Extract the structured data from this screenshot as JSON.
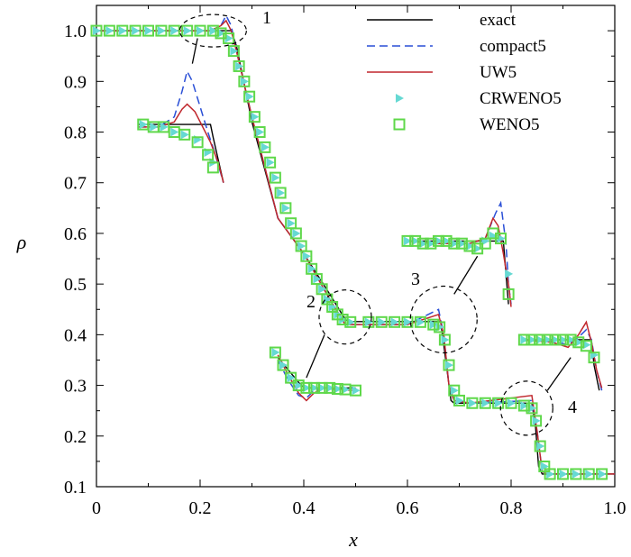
{
  "chart_data": {
    "type": "line",
    "xlabel": "x",
    "ylabel": "ρ",
    "xlim": [
      0,
      1.0
    ],
    "ylim": [
      0.1,
      1.05
    ],
    "xticks": [
      "0",
      "0.2",
      "0.4",
      "0.6",
      "0.8",
      "1.0"
    ],
    "yticks": [
      "0.1",
      "0.2",
      "0.3",
      "0.4",
      "0.5",
      "0.6",
      "0.7",
      "0.8",
      "0.9",
      "1.0"
    ],
    "legend_position": "top-right",
    "colors": {
      "exact": "#000000",
      "compact5": "#2a4fd6",
      "UW5": "#c0272d",
      "CRWENO5": "#66d9d3",
      "WENO5": "#5fd84a"
    },
    "annotations": [
      "1",
      "2",
      "3",
      "4"
    ],
    "series": [
      {
        "name": "exact",
        "style": "solid",
        "x": [
          0.0,
          0.26,
          0.27,
          0.3,
          0.35,
          0.4,
          0.45,
          0.48,
          0.49,
          0.6,
          0.664,
          0.67,
          0.684,
          0.69,
          0.84,
          0.847,
          0.853,
          0.86,
          1.0
        ],
        "y": [
          1.0,
          1.0,
          0.97,
          0.82,
          0.63,
          0.56,
          0.48,
          0.43,
          0.426,
          0.426,
          0.426,
          0.38,
          0.27,
          0.265,
          0.265,
          0.22,
          0.14,
          0.125,
          0.125
        ]
      },
      {
        "name": "compact5",
        "style": "dashed",
        "x": [
          0.0,
          0.22,
          0.24,
          0.25,
          0.26,
          0.27,
          0.3,
          0.35,
          0.4,
          0.45,
          0.48,
          0.5,
          0.6,
          0.66,
          0.67,
          0.68,
          0.69,
          0.72,
          0.84,
          0.85,
          0.86,
          0.87,
          1.0
        ],
        "y": [
          1.0,
          1.0,
          1.01,
          1.03,
          1.01,
          0.96,
          0.83,
          0.63,
          0.56,
          0.47,
          0.42,
          0.42,
          0.42,
          0.45,
          0.4,
          0.3,
          0.27,
          0.265,
          0.27,
          0.21,
          0.13,
          0.125,
          0.125
        ]
      },
      {
        "name": "UW5",
        "style": "solid",
        "x": [
          0.0,
          0.22,
          0.24,
          0.25,
          0.26,
          0.27,
          0.3,
          0.35,
          0.4,
          0.45,
          0.48,
          0.5,
          0.6,
          0.66,
          0.67,
          0.68,
          0.69,
          0.72,
          0.84,
          0.85,
          0.86,
          0.87,
          1.0
        ],
        "y": [
          1.0,
          1.0,
          1.01,
          1.02,
          1.0,
          0.96,
          0.83,
          0.63,
          0.56,
          0.47,
          0.42,
          0.42,
          0.42,
          0.44,
          0.4,
          0.3,
          0.27,
          0.265,
          0.28,
          0.21,
          0.13,
          0.125,
          0.125
        ]
      },
      {
        "name": "CRWENO5",
        "style": "triangle",
        "x": [
          0.0,
          0.025,
          0.05,
          0.075,
          0.1,
          0.125,
          0.15,
          0.175,
          0.2,
          0.225,
          0.24,
          0.255,
          0.265,
          0.275,
          0.285,
          0.295,
          0.305,
          0.315,
          0.325,
          0.335,
          0.345,
          0.355,
          0.365,
          0.375,
          0.385,
          0.395,
          0.405,
          0.415,
          0.425,
          0.435,
          0.445,
          0.455,
          0.465,
          0.475,
          0.49,
          0.525,
          0.55,
          0.575,
          0.6,
          0.625,
          0.65,
          0.662,
          0.672,
          0.68,
          0.69,
          0.7,
          0.725,
          0.75,
          0.775,
          0.8,
          0.825,
          0.84,
          0.848,
          0.856,
          0.864,
          0.875,
          0.9,
          0.925,
          0.95,
          0.975
        ],
        "y": [
          1.0,
          1.0,
          1.0,
          1.0,
          1.0,
          1.0,
          1.0,
          1.0,
          1.0,
          1.0,
          0.995,
          0.985,
          0.96,
          0.93,
          0.9,
          0.87,
          0.83,
          0.8,
          0.77,
          0.74,
          0.71,
          0.68,
          0.65,
          0.62,
          0.6,
          0.575,
          0.555,
          0.53,
          0.51,
          0.49,
          0.47,
          0.455,
          0.44,
          0.43,
          0.425,
          0.425,
          0.425,
          0.425,
          0.425,
          0.425,
          0.42,
          0.415,
          0.39,
          0.34,
          0.29,
          0.27,
          0.265,
          0.265,
          0.265,
          0.265,
          0.26,
          0.255,
          0.23,
          0.18,
          0.14,
          0.125,
          0.125,
          0.125,
          0.125,
          0.125
        ]
      },
      {
        "name": "WENO5",
        "style": "square",
        "x": [
          0.0,
          0.025,
          0.05,
          0.075,
          0.1,
          0.125,
          0.15,
          0.175,
          0.2,
          0.225,
          0.24,
          0.255,
          0.265,
          0.275,
          0.285,
          0.295,
          0.305,
          0.315,
          0.325,
          0.335,
          0.345,
          0.355,
          0.365,
          0.375,
          0.385,
          0.395,
          0.405,
          0.415,
          0.425,
          0.435,
          0.445,
          0.455,
          0.465,
          0.475,
          0.49,
          0.525,
          0.55,
          0.575,
          0.6,
          0.625,
          0.65,
          0.662,
          0.672,
          0.68,
          0.69,
          0.7,
          0.725,
          0.75,
          0.775,
          0.8,
          0.825,
          0.84,
          0.848,
          0.856,
          0.864,
          0.875,
          0.9,
          0.925,
          0.95,
          0.975
        ],
        "y": [
          1.0,
          1.0,
          1.0,
          1.0,
          1.0,
          1.0,
          1.0,
          1.0,
          1.0,
          1.0,
          0.995,
          0.985,
          0.96,
          0.93,
          0.9,
          0.87,
          0.83,
          0.8,
          0.77,
          0.74,
          0.71,
          0.68,
          0.65,
          0.62,
          0.6,
          0.575,
          0.555,
          0.53,
          0.51,
          0.49,
          0.47,
          0.455,
          0.44,
          0.43,
          0.425,
          0.425,
          0.425,
          0.425,
          0.425,
          0.425,
          0.42,
          0.415,
          0.39,
          0.34,
          0.29,
          0.27,
          0.265,
          0.265,
          0.265,
          0.265,
          0.26,
          0.255,
          0.23,
          0.18,
          0.14,
          0.125,
          0.125,
          0.125,
          0.125,
          0.125
        ]
      }
    ],
    "insets": [
      {
        "label": "1",
        "exact": {
          "x": [
            0.08,
            0.22,
            0.225,
            0.245
          ],
          "y": [
            0.815,
            0.815,
            0.79,
            0.7
          ]
        },
        "compact5": {
          "x": [
            0.08,
            0.12,
            0.15,
            0.165,
            0.175,
            0.185,
            0.2,
            0.215,
            0.228,
            0.245
          ],
          "y": [
            0.81,
            0.81,
            0.83,
            0.88,
            0.92,
            0.9,
            0.85,
            0.8,
            0.76,
            0.7
          ]
        },
        "UW5": {
          "x": [
            0.08,
            0.12,
            0.15,
            0.165,
            0.175,
            0.19,
            0.205,
            0.22,
            0.235,
            0.245
          ],
          "y": [
            0.81,
            0.81,
            0.82,
            0.845,
            0.855,
            0.84,
            0.81,
            0.78,
            0.74,
            0.7
          ]
        },
        "CRWENO5": {
          "x": [
            0.09,
            0.11,
            0.13,
            0.15,
            0.17,
            0.195,
            0.215,
            0.225
          ],
          "y": [
            0.815,
            0.81,
            0.81,
            0.8,
            0.795,
            0.785,
            0.76,
            0.74
          ]
        },
        "WENO5": {
          "x": [
            0.09,
            0.11,
            0.13,
            0.15,
            0.17,
            0.195,
            0.215,
            0.225
          ],
          "y": [
            0.815,
            0.81,
            0.81,
            0.8,
            0.795,
            0.78,
            0.755,
            0.73
          ]
        }
      },
      {
        "label": "2",
        "exact": {
          "x": [
            0.35,
            0.395,
            0.405,
            0.5
          ],
          "y": [
            0.355,
            0.3,
            0.295,
            0.295
          ]
        },
        "compact5": {
          "x": [
            0.35,
            0.37,
            0.39,
            0.405,
            0.42,
            0.44,
            0.46,
            0.5
          ],
          "y": [
            0.35,
            0.31,
            0.28,
            0.275,
            0.29,
            0.295,
            0.292,
            0.29
          ]
        },
        "UW5": {
          "x": [
            0.35,
            0.37,
            0.39,
            0.405,
            0.42,
            0.44,
            0.46,
            0.5
          ],
          "y": [
            0.36,
            0.32,
            0.285,
            0.27,
            0.285,
            0.295,
            0.293,
            0.29
          ]
        },
        "CRWENO5": {
          "x": [
            0.345,
            0.36,
            0.375,
            0.39,
            0.405,
            0.42,
            0.435,
            0.45,
            0.465,
            0.48,
            0.5
          ],
          "y": [
            0.365,
            0.34,
            0.315,
            0.3,
            0.295,
            0.295,
            0.295,
            0.295,
            0.293,
            0.292,
            0.29
          ]
        },
        "WENO5": {
          "x": [
            0.345,
            0.36,
            0.375,
            0.39,
            0.405,
            0.42,
            0.435,
            0.45,
            0.465,
            0.48,
            0.5
          ],
          "y": [
            0.365,
            0.34,
            0.315,
            0.3,
            0.295,
            0.295,
            0.295,
            0.295,
            0.293,
            0.292,
            0.29
          ]
        }
      },
      {
        "label": "3",
        "exact": {
          "x": [
            0.6,
            0.785,
            0.79,
            0.795
          ],
          "y": [
            0.585,
            0.585,
            0.52,
            0.46
          ]
        },
        "compact5": {
          "x": [
            0.6,
            0.66,
            0.72,
            0.75,
            0.77,
            0.78,
            0.79,
            0.795,
            0.8
          ],
          "y": [
            0.585,
            0.58,
            0.58,
            0.59,
            0.64,
            0.66,
            0.58,
            0.5,
            0.46
          ]
        },
        "UW5": {
          "x": [
            0.6,
            0.66,
            0.72,
            0.75,
            0.765,
            0.775,
            0.785,
            0.795,
            0.8
          ],
          "y": [
            0.585,
            0.58,
            0.58,
            0.59,
            0.63,
            0.615,
            0.56,
            0.5,
            0.455
          ]
        },
        "CRWENO5": {
          "x": [
            0.6,
            0.615,
            0.63,
            0.645,
            0.66,
            0.675,
            0.69,
            0.705,
            0.72,
            0.735,
            0.75,
            0.765,
            0.78,
            0.795
          ],
          "y": [
            0.585,
            0.585,
            0.58,
            0.58,
            0.585,
            0.585,
            0.58,
            0.58,
            0.575,
            0.57,
            0.585,
            0.595,
            0.59,
            0.52
          ]
        },
        "WENO5": {
          "x": [
            0.6,
            0.615,
            0.63,
            0.645,
            0.66,
            0.675,
            0.69,
            0.705,
            0.72,
            0.735,
            0.75,
            0.765,
            0.78,
            0.795
          ],
          "y": [
            0.585,
            0.585,
            0.58,
            0.58,
            0.585,
            0.585,
            0.58,
            0.58,
            0.575,
            0.57,
            0.58,
            0.6,
            0.59,
            0.48
          ]
        }
      },
      {
        "label": "4",
        "exact": {
          "x": [
            0.82,
            0.955,
            0.96,
            0.97
          ],
          "y": [
            0.39,
            0.39,
            0.34,
            0.29
          ]
        },
        "compact5": {
          "x": [
            0.82,
            0.88,
            0.91,
            0.93,
            0.945,
            0.955,
            0.965,
            0.975
          ],
          "y": [
            0.39,
            0.388,
            0.38,
            0.395,
            0.41,
            0.39,
            0.33,
            0.29
          ]
        },
        "UW5": {
          "x": [
            0.82,
            0.88,
            0.91,
            0.93,
            0.945,
            0.955,
            0.965,
            0.975
          ],
          "y": [
            0.39,
            0.385,
            0.375,
            0.4,
            0.425,
            0.385,
            0.33,
            0.295
          ]
        },
        "CRWENO5": {
          "x": [
            0.825,
            0.84,
            0.855,
            0.87,
            0.885,
            0.9,
            0.915,
            0.93,
            0.945,
            0.96
          ],
          "y": [
            0.39,
            0.39,
            0.39,
            0.39,
            0.39,
            0.39,
            0.39,
            0.385,
            0.38,
            0.36
          ]
        },
        "WENO5": {
          "x": [
            0.825,
            0.84,
            0.855,
            0.87,
            0.885,
            0.9,
            0.915,
            0.93,
            0.945,
            0.96
          ],
          "y": [
            0.39,
            0.39,
            0.39,
            0.39,
            0.39,
            0.39,
            0.39,
            0.385,
            0.378,
            0.355
          ]
        }
      }
    ]
  }
}
